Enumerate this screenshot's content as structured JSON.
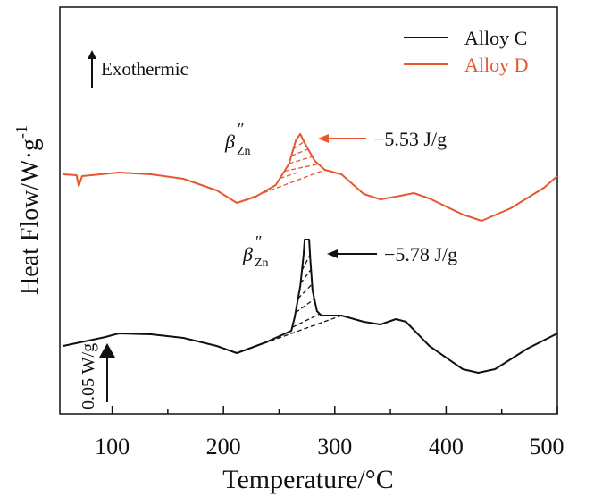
{
  "chart_data": {
    "type": "line",
    "title": "",
    "xlabel": "Temperature/°C",
    "ylabel": "Heat Flow/W·g",
    "ylabel_sup": "-1",
    "xlim": [
      53,
      500
    ],
    "ylim": [
      0,
      455
    ],
    "y_units": "a.u. (offset curves)",
    "xticks": [
      100,
      200,
      300,
      400,
      500
    ],
    "xticks_minor": [
      150,
      250,
      350,
      450
    ],
    "grid": false,
    "legend": {
      "placement": "top-right",
      "entries": [
        "Alloy C",
        "Alloy D"
      ]
    },
    "colors": {
      "Alloy C": "#111111",
      "Alloy D": "#e8572f"
    },
    "series": [
      {
        "name": "Alloy C",
        "x": [
          56,
          94,
          106,
          135,
          164,
          194,
          212,
          238,
          261,
          264,
          269,
          272,
          273,
          277,
          278,
          280,
          284,
          288,
          300,
          306,
          326,
          341,
          355,
          364,
          385,
          415,
          429,
          444,
          473,
          500
        ],
        "y": [
          76,
          86,
          90,
          89,
          85,
          76,
          68,
          80,
          93,
          108,
          143,
          178,
          195,
          195,
          173,
          138,
          115,
          110,
          110,
          110,
          103,
          100,
          106,
          103,
          76,
          50,
          46,
          50,
          73,
          90
        ]
      },
      {
        "name": "Alloy D",
        "x": [
          56,
          68,
          70,
          73,
          106,
          135,
          164,
          194,
          212,
          229,
          247,
          259,
          265,
          269,
          273,
          282,
          291,
          306,
          326,
          341,
          355,
          371,
          385,
          415,
          432,
          458,
          488,
          500
        ],
        "y": [
          268,
          267,
          255,
          266,
          270,
          268,
          263,
          250,
          236,
          243,
          256,
          280,
          306,
          313,
          303,
          283,
          273,
          268,
          246,
          240,
          243,
          247,
          241,
          223,
          216,
          230,
          253,
          266
        ]
      }
    ],
    "annotations": {
      "exothermic": "Exothermic",
      "phase_symbol": "β",
      "phase_prime": "″",
      "phase_sub": "Zn",
      "enthalpy_D": "−5.53 J/g",
      "enthalpy_C": "−5.78 J/g",
      "scale_bar": "0.05 W/g"
    },
    "integration_baseline": {
      "Alloy C": {
        "from": [
          212,
          68
        ],
        "to": [
          306,
          110
        ]
      },
      "Alloy D": {
        "from": [
          212,
          236
        ],
        "to": [
          291,
          273
        ]
      }
    }
  }
}
